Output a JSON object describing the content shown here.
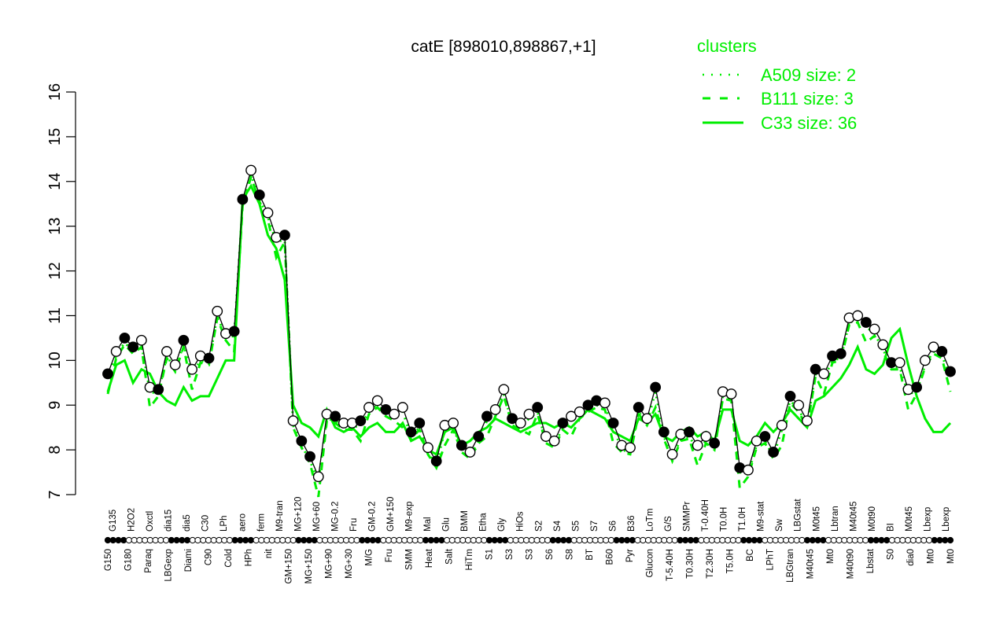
{
  "chart_data": {
    "type": "line",
    "title": "catE [898010,898867,+1]",
    "xlabel": "",
    "ylabel": "",
    "ylim": [
      7,
      16
    ],
    "yticks": [
      7,
      8,
      9,
      10,
      11,
      12,
      13,
      14,
      15,
      16
    ],
    "grid": false,
    "legend": {
      "title": "clusters",
      "position": "top-right",
      "entries": [
        {
          "label": "A509 size: 2",
          "style": "dotted",
          "color": "#00ee00"
        },
        {
          "label": "B111 size: 3",
          "style": "dashed",
          "color": "#00ee00"
        },
        {
          "label": "C33 size: 36",
          "style": "solid",
          "color": "#00ee00"
        }
      ]
    },
    "colors": {
      "points_line": "#000000",
      "cluster": "#00ee00",
      "axis": "#000000"
    },
    "x_labels_top": [
      "G135",
      "H2O2",
      "Oxctl",
      "dia15",
      "dia5",
      "C30",
      "LPh",
      "aero",
      "ferm",
      "M9-tran",
      "MG+120",
      "MG+60",
      "MG-0.2",
      "Fru",
      "GM-0.2",
      "GM+150",
      "M9-exp",
      "Mal",
      "Glu",
      "BMM",
      "Etha",
      "Gly",
      "HiOs",
      "S2",
      "S4",
      "S5",
      "S7",
      "S6",
      "B36",
      "LoTm",
      "G/S",
      "SMMPr",
      "T-0.40H",
      "T0.0H",
      "T1.0H",
      "M9-stat",
      "Sw",
      "LBGstat",
      "M0t45",
      "Lbtran",
      "M40t45",
      "M0t90",
      "BI",
      "M0t45",
      "Lbexp",
      "Lbexp"
    ],
    "x_labels_bottom": [
      "G150",
      "G180",
      "Paraq",
      "LBGexp",
      "Diami",
      "C90",
      "Cold",
      "HPh",
      "nit",
      "GM+150",
      "MG+150",
      "MG+90",
      "MG+30",
      "M/G",
      "Fru",
      "SMM",
      "Heat",
      "Salt",
      "HiTm",
      "S1",
      "S3",
      "S3",
      "S6",
      "S8",
      "BT",
      "B60",
      "Pyr",
      "Glucon",
      "T-5.40H",
      "T0.30H",
      "T2.30H",
      "T5.0H",
      "BC",
      "LPhT",
      "LBGtran",
      "M40t45",
      "Mt0",
      "M40t90",
      "Lbstat",
      "S0",
      "dia0",
      "Mt0",
      "Mt0"
    ],
    "series": [
      {
        "name": "expression",
        "style": "points-line",
        "x": [
          0.0,
          0.01,
          0.02,
          0.03,
          0.04,
          0.05,
          0.06,
          0.07,
          0.08,
          0.09,
          0.1,
          0.11,
          0.12,
          0.13,
          0.14,
          0.15,
          0.16,
          0.17,
          0.18,
          0.19,
          0.2,
          0.21,
          0.22,
          0.23,
          0.24,
          0.25,
          0.26,
          0.27,
          0.28,
          0.29,
          0.3,
          0.31,
          0.32,
          0.33,
          0.34,
          0.35,
          0.36,
          0.37,
          0.38,
          0.39,
          0.4,
          0.41,
          0.42,
          0.43,
          0.44,
          0.45,
          0.46,
          0.47,
          0.48,
          0.49,
          0.5,
          0.51,
          0.52,
          0.53,
          0.54,
          0.55,
          0.56,
          0.57,
          0.58,
          0.59,
          0.6,
          0.61,
          0.62,
          0.63,
          0.64,
          0.65,
          0.66,
          0.67,
          0.68,
          0.69,
          0.7,
          0.71,
          0.72,
          0.73,
          0.74,
          0.75,
          0.76,
          0.77,
          0.78,
          0.79,
          0.8,
          0.81,
          0.82,
          0.83,
          0.84,
          0.85,
          0.86,
          0.87,
          0.88,
          0.89,
          0.9,
          0.91,
          0.92,
          0.93,
          0.94,
          0.95,
          0.96,
          0.97,
          0.98,
          0.99,
          1.0
        ],
        "values": [
          9.7,
          10.2,
          10.5,
          10.3,
          10.45,
          9.4,
          9.35,
          10.2,
          9.9,
          10.45,
          9.8,
          10.1,
          10.05,
          11.1,
          10.6,
          10.65,
          13.6,
          14.25,
          13.7,
          13.3,
          12.75,
          12.8,
          8.65,
          8.2,
          7.85,
          7.4,
          8.8,
          8.75,
          8.6,
          8.6,
          8.65,
          8.95,
          9.1,
          8.9,
          8.8,
          8.95,
          8.4,
          8.6,
          8.05,
          7.75,
          8.55,
          8.6,
          8.1,
          7.95,
          8.3,
          8.75,
          8.9,
          9.35,
          8.7,
          8.6,
          8.8,
          8.95,
          8.3,
          8.2,
          8.6,
          8.75,
          8.85,
          9.0,
          9.1,
          9.05,
          8.6,
          8.1,
          8.05,
          8.95,
          8.7,
          9.4,
          8.4,
          7.9,
          8.35,
          8.4,
          8.1,
          8.3,
          8.15,
          9.3,
          9.25,
          7.6,
          7.55,
          8.2,
          8.3,
          7.95,
          8.55,
          9.2,
          9.0,
          8.65,
          9.8,
          9.7,
          10.1,
          10.15,
          10.95,
          11.0,
          10.85,
          10.7,
          10.35,
          9.95,
          9.95,
          9.35,
          9.4,
          10.0,
          10.3,
          10.2,
          9.75
        ]
      },
      {
        "name": "C33 size: 36",
        "style": "solid",
        "values": [
          9.3,
          9.9,
          10.0,
          9.5,
          9.8,
          9.7,
          9.3,
          9.1,
          9.0,
          9.4,
          9.1,
          9.2,
          9.2,
          9.6,
          10.0,
          10.0,
          13.6,
          13.9,
          13.5,
          12.8,
          12.5,
          11.8,
          9.0,
          8.6,
          8.5,
          8.3,
          8.9,
          8.5,
          8.4,
          8.5,
          8.3,
          8.5,
          8.6,
          8.4,
          8.4,
          8.6,
          8.2,
          8.3,
          8.0,
          7.9,
          8.4,
          8.5,
          8.1,
          8.2,
          8.4,
          8.5,
          8.7,
          8.6,
          8.5,
          8.4,
          8.5,
          8.6,
          8.6,
          8.5,
          8.6,
          8.5,
          8.7,
          8.9,
          8.8,
          8.7,
          8.4,
          8.3,
          8.2,
          8.7,
          8.6,
          8.8,
          8.3,
          8.2,
          8.4,
          8.5,
          8.3,
          8.4,
          8.2,
          8.9,
          8.9,
          8.2,
          8.1,
          8.3,
          8.6,
          8.4,
          8.6,
          8.9,
          8.7,
          8.5,
          9.1,
          9.2,
          9.4,
          9.6,
          9.9,
          10.3,
          9.8,
          9.7,
          9.9,
          10.5,
          10.7,
          9.9,
          9.2,
          8.7,
          8.4,
          8.4,
          8.6
        ]
      }
    ]
  }
}
